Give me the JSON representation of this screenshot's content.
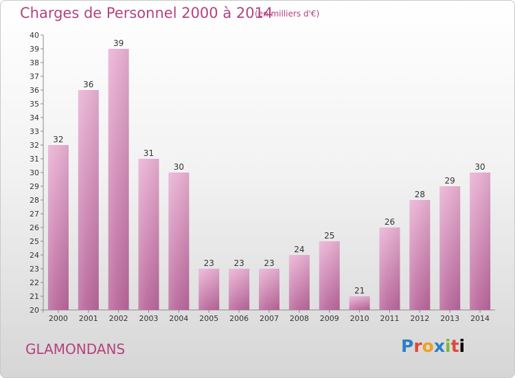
{
  "header": {
    "title": "Charges de Personnel 2000 à 2014",
    "subtitle": "(en milliers d'€)"
  },
  "footer": {
    "location": "GLAMONDANS",
    "logo_text": "Proxiti"
  },
  "colors": {
    "bar_light": "#e8b0d2",
    "bar_dark": "#b8669a",
    "title": "#b3427f"
  },
  "chart_data": {
    "type": "bar",
    "categories": [
      "2000",
      "2001",
      "2002",
      "2003",
      "2004",
      "2005",
      "2006",
      "2007",
      "2008",
      "2009",
      "2010",
      "2011",
      "2012",
      "2013",
      "2014"
    ],
    "values": [
      32,
      36,
      39,
      31,
      30,
      23,
      23,
      23,
      24,
      25,
      21,
      26,
      28,
      29,
      30
    ],
    "title": "Charges de Personnel 2000 à 2014",
    "xlabel": "",
    "ylabel": "",
    "ylim": [
      20,
      40
    ],
    "yticks": [
      20,
      21,
      22,
      23,
      24,
      25,
      26,
      27,
      28,
      29,
      30,
      31,
      32,
      33,
      34,
      35,
      36,
      37,
      38,
      39,
      40
    ],
    "grid": false,
    "data_labels": true
  }
}
